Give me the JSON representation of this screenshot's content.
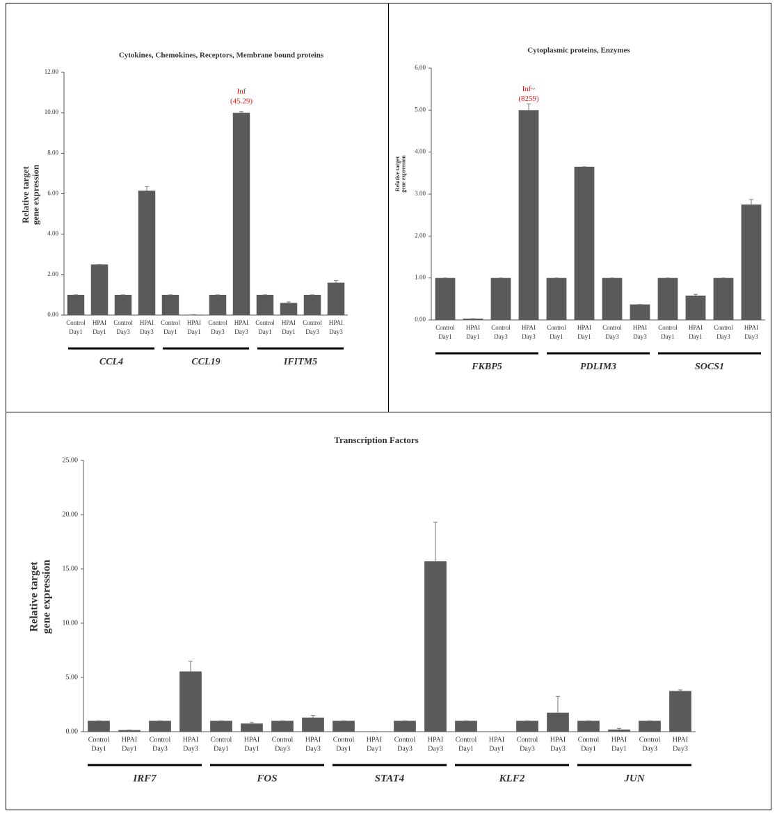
{
  "chart_data": [
    {
      "type": "bar",
      "title": "Cytokines, Chemokines, Receptors, Membrane bound proteins",
      "y_label": [
        "Relative target",
        "gene expression"
      ],
      "categories": [
        [
          "Control",
          "Day1"
        ],
        [
          "HPAI",
          "Day1"
        ],
        [
          "Control",
          "Day3"
        ],
        [
          "HPAI",
          "Day3"
        ],
        [
          "Control",
          "Day1"
        ],
        [
          "HPAI",
          "Day1"
        ],
        [
          "Control",
          "Day3"
        ],
        [
          "HPAI",
          "Day3"
        ],
        [
          "Control",
          "Day1"
        ],
        [
          "HPAI",
          "Day1"
        ],
        [
          "Control",
          "Day3"
        ],
        [
          "HPAI",
          "Day3"
        ]
      ],
      "groups": [
        "CCL4",
        "CCL19",
        "IFITM5"
      ],
      "values": [
        1,
        2.5,
        1,
        6.15,
        1,
        0.02,
        1,
        10,
        1,
        0.6,
        1,
        1.6
      ],
      "errors": [
        0,
        0,
        0,
        0.2,
        0,
        0,
        0,
        0.05,
        0,
        0.05,
        0,
        0.1
      ],
      "color": "#5a5a5a",
      "annotations": [
        {
          "bar": 7,
          "lines": [
            "Inf",
            "(45.29)"
          ],
          "color": "#cc2222"
        }
      ],
      "ylim": [
        0,
        12
      ],
      "yticks": [
        {
          "value": 0,
          "label": "0.00"
        },
        {
          "value": 2,
          "label": "2.00"
        },
        {
          "value": 4,
          "label": "4.00"
        },
        {
          "value": 6,
          "label": "6.00"
        },
        {
          "value": 8,
          "label": "8.00"
        },
        {
          "value": 10,
          "label": "10.00"
        },
        {
          "value": 12,
          "label": "12.00"
        }
      ]
    },
    {
      "type": "bar",
      "title": "Cytoplasmic proteins, Enzymes",
      "y_label": [
        "Relative target",
        "gene expression"
      ],
      "categories": [
        [
          "Control",
          "Day1"
        ],
        [
          "HPAI",
          "Day1"
        ],
        [
          "Control",
          "Day3"
        ],
        [
          "HPAI",
          "Day3"
        ],
        [
          "Control",
          "Day1"
        ],
        [
          "HPAI",
          "Day1"
        ],
        [
          "Control",
          "Day3"
        ],
        [
          "HPAI",
          "Day3"
        ],
        [
          "Control",
          "Day1"
        ],
        [
          "HPAI",
          "Day1"
        ],
        [
          "Control",
          "Day3"
        ],
        [
          "HPAI",
          "Day3"
        ]
      ],
      "groups": [
        "FKBP5",
        "PDLIM3",
        "SOCS1"
      ],
      "values": [
        1,
        0.03,
        1,
        5.0,
        1,
        3.65,
        1,
        0.37,
        1,
        0.58,
        1,
        2.75
      ],
      "errors": [
        0,
        0,
        0,
        0.15,
        0,
        0,
        0,
        0,
        0,
        0.03,
        0,
        0.12
      ],
      "color": "#5a5a5a",
      "annotations": [
        {
          "bar": 3,
          "lines": [
            "Inf~",
            "(8259)"
          ],
          "color": "#cc2222"
        }
      ],
      "ylim": [
        0,
        6
      ],
      "yticks": [
        {
          "value": 0,
          "label": "0.00"
        },
        {
          "value": 1,
          "label": "1.00"
        },
        {
          "value": 2,
          "label": "2.00"
        },
        {
          "value": 3,
          "label": "3.00"
        },
        {
          "value": 4,
          "label": "4.00"
        },
        {
          "value": 5,
          "label": "5.00"
        },
        {
          "value": 6,
          "label": "6.00"
        }
      ]
    },
    {
      "type": "bar",
      "title": "Transcription Factors",
      "y_label": [
        "Relative target",
        "gene expression"
      ],
      "categories": [
        [
          "Control",
          "Day1"
        ],
        [
          "HPAI",
          "Day1"
        ],
        [
          "Control",
          "Day3"
        ],
        [
          "HPAI",
          "Day3"
        ],
        [
          "Control",
          "Day1"
        ],
        [
          "HPAI",
          "Day1"
        ],
        [
          "Control",
          "Day3"
        ],
        [
          "HPAI",
          "Day3"
        ],
        [
          "Control",
          "Day1"
        ],
        [
          "HPAI",
          "Day1"
        ],
        [
          "Control",
          "Day3"
        ],
        [
          "HPAI",
          "Day3"
        ],
        [
          "Control",
          "Day1"
        ],
        [
          "HPAI",
          "Day1"
        ],
        [
          "Control",
          "Day3"
        ],
        [
          "HPAI",
          "Day3"
        ],
        [
          "Control",
          "Day1"
        ],
        [
          "HPAI",
          "Day1"
        ],
        [
          "Control",
          "Day3"
        ],
        [
          "HPAI",
          "Day3"
        ]
      ],
      "groups": [
        "IRF7",
        "FOS",
        "STAT4",
        "KLF2",
        "JUN"
      ],
      "values": [
        1,
        0.15,
        1,
        5.55,
        1,
        0.75,
        1,
        1.3,
        1,
        0.02,
        1,
        15.7,
        1,
        0.02,
        1,
        1.75,
        1,
        0.2,
        1,
        3.75
      ],
      "errors": [
        0,
        0,
        0,
        0.95,
        0,
        0.1,
        0,
        0.2,
        0,
        0,
        0,
        3.6,
        0,
        0,
        0,
        1.5,
        0,
        0.1,
        0,
        0.1
      ],
      "color": "#5a5a5a",
      "ylim": [
        0,
        25
      ],
      "yticks": [
        {
          "value": 0,
          "label": "0.00"
        },
        {
          "value": 5,
          "label": "5.00"
        },
        {
          "value": 10,
          "label": "10.00"
        },
        {
          "value": 15,
          "label": "15.00"
        },
        {
          "value": 20,
          "label": "20.00"
        },
        {
          "value": 25,
          "label": "25.00"
        }
      ]
    }
  ]
}
